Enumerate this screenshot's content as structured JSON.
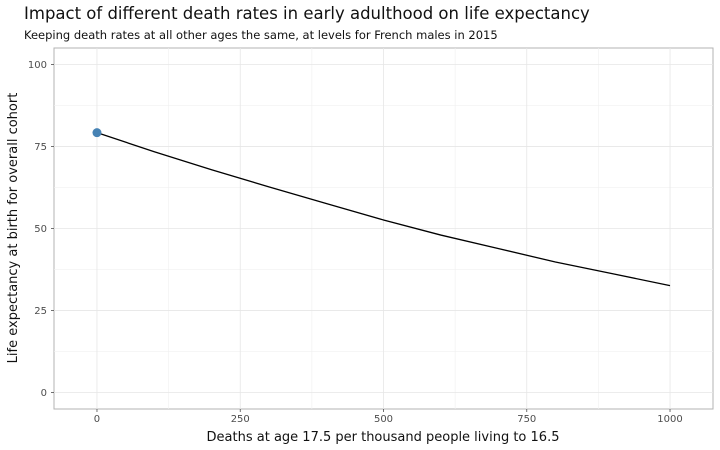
{
  "chart_data": {
    "type": "line",
    "title": "Impact of different death rates in early adulthood on life expectancy",
    "subtitle": "Keeping death rates at all other ages the same, at levels for French males in 2015",
    "xlabel": "Deaths at age 17.5 per thousand people living to 16.5",
    "ylabel": "Life expectancy at birth for overall cohort",
    "xlim": [
      -75,
      1075
    ],
    "ylim": [
      -5,
      105
    ],
    "x_ticks": [
      0,
      250,
      500,
      750,
      1000
    ],
    "y_ticks": [
      0,
      25,
      50,
      75,
      100
    ],
    "x_tick_labels": [
      "0",
      "250",
      "500",
      "750",
      "1000"
    ],
    "y_tick_labels": [
      "0",
      "25",
      "50",
      "75",
      "100"
    ],
    "grid": true,
    "series": [
      {
        "x": [
          0,
          100,
          200,
          300,
          400,
          500,
          600,
          700,
          800,
          900,
          1000
        ],
        "y": [
          79.2,
          73.4,
          67.9,
          62.7,
          57.6,
          52.6,
          48.0,
          43.9,
          39.8,
          36.2,
          32.6
        ],
        "color": "#000000"
      }
    ],
    "highlight_point": {
      "x": 0,
      "y": 79.2,
      "color": "#4682b4"
    }
  }
}
